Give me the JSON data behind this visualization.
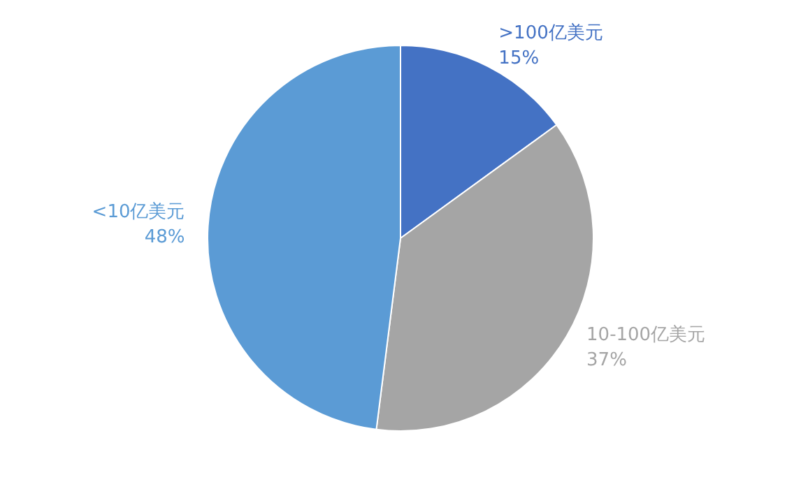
{
  "chart_data": {
    "type": "pie",
    "categories": [
      ">100亿美元",
      "10-100亿美元",
      "<10亿美元"
    ],
    "values": [
      15,
      37,
      48
    ],
    "colors": [
      "#4472c4",
      "#a5a5a5",
      "#5b9bd5"
    ],
    "value_labels": [
      "15%",
      "37%",
      "48%"
    ]
  }
}
